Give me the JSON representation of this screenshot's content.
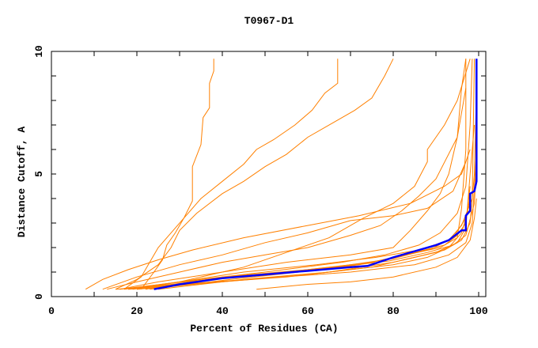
{
  "chart_data": {
    "type": "line",
    "title": "T0967-D1",
    "xlabel": "Percent of Residues (CA)",
    "ylabel": "Distance Cutoff, A",
    "xlim": [
      0,
      100
    ],
    "ylim": [
      0,
      10
    ],
    "xticks": [
      0,
      20,
      40,
      60,
      80,
      100
    ],
    "yticks": [
      0,
      5,
      10
    ],
    "grid": false,
    "legend": "none",
    "colors": {
      "models": "#ff8000",
      "highlight": "#0000ff"
    },
    "highlight_series": {
      "points": [
        [
          24,
          0.3
        ],
        [
          30,
          0.5
        ],
        [
          40,
          0.75
        ],
        [
          50,
          0.9
        ],
        [
          60,
          1.05
        ],
        [
          70,
          1.2
        ],
        [
          74,
          1.25
        ],
        [
          80,
          1.6
        ],
        [
          90,
          2.1
        ],
        [
          93,
          2.3
        ],
        [
          96,
          2.7
        ],
        [
          97,
          2.7
        ],
        [
          97,
          3.3
        ],
        [
          98,
          3.5
        ],
        [
          98,
          4.2
        ],
        [
          99,
          4.3
        ],
        [
          99.5,
          4.7
        ],
        [
          99.5,
          9.7
        ]
      ]
    },
    "series": [
      {
        "points": [
          [
            21,
            0.3
          ],
          [
            24,
            1.0
          ],
          [
            26,
            1.5
          ],
          [
            27,
            2.1
          ],
          [
            29,
            2.6
          ],
          [
            31,
            3.2
          ],
          [
            33,
            3.9
          ],
          [
            33,
            5.3
          ],
          [
            35,
            6.2
          ],
          [
            35.5,
            7.3
          ],
          [
            37,
            7.7
          ],
          [
            37,
            8.7
          ],
          [
            38,
            9.2
          ],
          [
            38,
            9.7
          ]
        ]
      },
      {
        "points": [
          [
            17,
            0.3
          ],
          [
            21,
            0.8
          ],
          [
            23,
            1.4
          ],
          [
            25,
            2.0
          ],
          [
            28,
            2.6
          ],
          [
            31,
            3.2
          ],
          [
            35,
            4.0
          ],
          [
            40,
            4.7
          ],
          [
            45,
            5.4
          ],
          [
            48,
            6.0
          ],
          [
            52,
            6.4
          ],
          [
            57,
            7.0
          ],
          [
            61,
            7.6
          ],
          [
            64,
            8.3
          ],
          [
            67,
            8.7
          ],
          [
            67,
            9.7
          ]
        ]
      },
      {
        "points": [
          [
            15,
            0.3
          ],
          [
            20,
            0.7
          ],
          [
            25,
            1.3
          ],
          [
            28,
            2.0
          ],
          [
            30,
            2.7
          ],
          [
            34,
            3.4
          ],
          [
            40,
            4.2
          ],
          [
            45,
            4.7
          ],
          [
            50,
            5.3
          ],
          [
            55,
            5.8
          ],
          [
            60,
            6.5
          ],
          [
            66,
            7.1
          ],
          [
            71,
            7.6
          ],
          [
            75,
            8.1
          ],
          [
            78,
            9.0
          ],
          [
            80,
            9.7
          ]
        ]
      },
      {
        "points": [
          [
            8,
            0.3
          ],
          [
            12,
            0.7
          ],
          [
            18,
            1.1
          ],
          [
            25,
            1.5
          ],
          [
            33,
            1.9
          ],
          [
            45,
            2.4
          ],
          [
            60,
            2.9
          ],
          [
            72,
            3.3
          ],
          [
            84,
            3.8
          ],
          [
            92,
            4.5
          ],
          [
            96,
            5.0
          ],
          [
            98,
            6.0
          ]
        ]
      },
      {
        "points": [
          [
            12,
            0.3
          ],
          [
            20,
            0.8
          ],
          [
            30,
            1.3
          ],
          [
            40,
            1.7
          ],
          [
            50,
            2.2
          ],
          [
            60,
            2.6
          ],
          [
            70,
            3.1
          ],
          [
            80,
            3.3
          ],
          [
            88,
            3.6
          ],
          [
            94,
            4.3
          ],
          [
            97,
            5.5
          ]
        ]
      },
      {
        "points": [
          [
            13,
            0.3
          ],
          [
            20,
            0.6
          ],
          [
            30,
            1.0
          ],
          [
            40,
            1.4
          ],
          [
            50,
            1.7
          ],
          [
            60,
            2.0
          ],
          [
            70,
            2.5
          ],
          [
            77,
            2.9
          ],
          [
            82,
            3.5
          ],
          [
            86,
            4.1
          ],
          [
            90,
            4.8
          ],
          [
            95,
            6.5
          ],
          [
            97,
            8.5
          ]
        ]
      },
      {
        "points": [
          [
            16,
            0.3
          ],
          [
            25,
            0.6
          ],
          [
            40,
            1.0
          ],
          [
            55,
            1.4
          ],
          [
            70,
            1.7
          ],
          [
            80,
            2.0
          ],
          [
            84,
            2.7
          ],
          [
            88,
            3.5
          ],
          [
            91,
            4.2
          ],
          [
            93,
            5.0
          ],
          [
            95,
            6.5
          ],
          [
            96,
            8.5
          ],
          [
            97,
            9.7
          ]
        ]
      },
      {
        "points": [
          [
            18,
            0.3
          ],
          [
            30,
            0.6
          ],
          [
            45,
            1.2
          ],
          [
            55,
            1.8
          ],
          [
            65,
            2.4
          ],
          [
            73,
            3.2
          ],
          [
            80,
            3.8
          ],
          [
            85,
            4.5
          ],
          [
            88,
            5.5
          ],
          [
            88,
            6.0
          ],
          [
            92,
            7.0
          ],
          [
            95,
            8.0
          ],
          [
            98,
            9.7
          ]
        ]
      },
      {
        "points": [
          [
            48,
            0.3
          ],
          [
            60,
            0.5
          ],
          [
            70,
            0.6
          ],
          [
            80,
            0.8
          ],
          [
            90,
            1.2
          ],
          [
            95,
            1.6
          ],
          [
            98,
            2.3
          ],
          [
            99,
            3.2
          ],
          [
            99.5,
            4.0
          ]
        ]
      },
      {
        "points": [
          [
            20,
            0.3
          ],
          [
            40,
            0.6
          ],
          [
            60,
            0.9
          ],
          [
            75,
            1.2
          ],
          [
            85,
            1.6
          ],
          [
            92,
            1.9
          ],
          [
            96,
            2.3
          ],
          [
            98,
            3.0
          ],
          [
            99,
            5.0
          ],
          [
            99.5,
            8.5
          ]
        ]
      },
      {
        "points": [
          [
            22,
            0.3
          ],
          [
            40,
            0.8
          ],
          [
            60,
            1.1
          ],
          [
            75,
            1.4
          ],
          [
            85,
            1.8
          ],
          [
            92,
            2.1
          ],
          [
            95,
            2.5
          ],
          [
            97,
            3.0
          ],
          [
            98,
            4.5
          ]
        ]
      },
      {
        "points": [
          [
            18,
            0.3
          ],
          [
            35,
            0.55
          ],
          [
            55,
            0.8
          ],
          [
            70,
            1.1
          ],
          [
            80,
            1.3
          ],
          [
            88,
            1.6
          ],
          [
            93,
            2.0
          ],
          [
            96,
            2.6
          ],
          [
            97.5,
            3.5
          ]
        ]
      },
      {
        "points": [
          [
            25,
            0.3
          ],
          [
            45,
            0.7
          ],
          [
            65,
            1.0
          ],
          [
            80,
            1.4
          ],
          [
            90,
            1.8
          ],
          [
            95,
            2.2
          ],
          [
            97,
            2.8
          ],
          [
            98,
            5.0
          ],
          [
            99,
            7.0
          ]
        ]
      },
      {
        "points": [
          [
            15,
            0.3
          ],
          [
            30,
            0.5
          ],
          [
            50,
            0.75
          ],
          [
            70,
            1.0
          ],
          [
            85,
            1.3
          ],
          [
            93,
            1.7
          ],
          [
            97,
            2.2
          ],
          [
            98.5,
            3.0
          ],
          [
            99.5,
            6.0
          ]
        ]
      },
      {
        "points": [
          [
            17,
            0.3
          ],
          [
            30,
            0.6
          ],
          [
            50,
            1.0
          ],
          [
            68,
            1.4
          ],
          [
            78,
            1.7
          ],
          [
            86,
            2.1
          ],
          [
            91,
            2.6
          ],
          [
            95,
            3.4
          ],
          [
            97,
            4.5
          ],
          [
            98,
            7.0
          ],
          [
            98.5,
            9.7
          ]
        ]
      },
      {
        "points": [
          [
            20,
            0.3
          ],
          [
            30,
            0.6
          ],
          [
            45,
            1.0
          ],
          [
            62,
            1.3
          ],
          [
            76,
            1.6
          ],
          [
            86,
            1.9
          ],
          [
            93,
            2.3
          ],
          [
            96,
            2.9
          ],
          [
            98.5,
            4.0
          ],
          [
            99,
            9.7
          ]
        ]
      },
      {
        "points": [
          [
            19,
            0.3
          ],
          [
            35,
            0.65
          ],
          [
            52,
            0.95
          ],
          [
            68,
            1.25
          ],
          [
            80,
            1.55
          ],
          [
            89,
            1.95
          ],
          [
            94,
            2.4
          ],
          [
            97,
            3.2
          ],
          [
            98,
            4.0
          ]
        ]
      },
      {
        "points": [
          [
            23,
            0.3
          ],
          [
            42,
            0.7
          ],
          [
            58,
            1.0
          ],
          [
            72,
            1.3
          ],
          [
            83,
            1.7
          ],
          [
            91,
            2.0
          ],
          [
            95,
            2.4
          ],
          [
            96,
            3.6
          ],
          [
            97,
            6.0
          ],
          [
            97,
            9.7
          ]
        ]
      },
      {
        "points": [
          [
            16,
            0.3
          ],
          [
            28,
            0.55
          ],
          [
            46,
            0.85
          ],
          [
            64,
            1.15
          ],
          [
            79,
            1.45
          ],
          [
            88,
            1.8
          ],
          [
            94,
            2.1
          ],
          [
            97,
            2.5
          ],
          [
            99,
            3.8
          ],
          [
            99.5,
            5.5
          ]
        ]
      }
    ]
  }
}
